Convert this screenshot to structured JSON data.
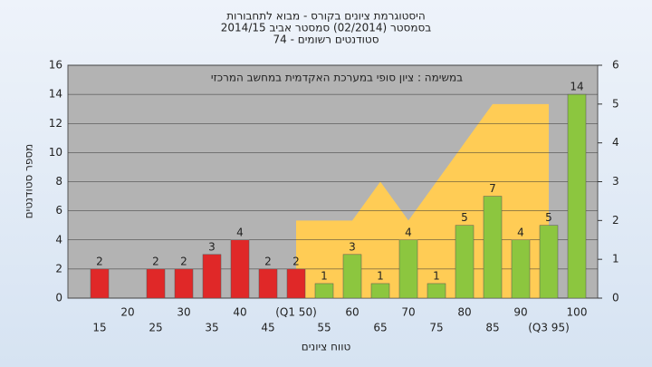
{
  "chart_data": {
    "type": "bar",
    "title_lines": [
      "היסטוגרמת ציונים בקורס - מבוא לתחבורות",
      "בסמסטר  (02/2014)  סמסטר אביב 2014/15",
      "סטודנטים רשומים - 74"
    ],
    "annotation": "במשימה : ציון סופי במערכת האקדמית במחשב המרכזי",
    "y_label": "מספר סטודנטים",
    "x_label": "טווח ציונים",
    "categories": [
      "15",
      "20",
      "25",
      "30",
      "35",
      "40",
      "45",
      "(Q1 50)",
      "55",
      "60",
      "65",
      "70",
      "75",
      "80",
      "85",
      "90",
      "(Q3 95)",
      "100"
    ],
    "values": [
      2,
      null,
      2,
      2,
      3,
      4,
      2,
      2,
      1,
      3,
      1,
      4,
      1,
      5,
      7,
      4,
      5,
      14
    ],
    "bar_colors": [
      "#e02828",
      "#e02828",
      "#e02828",
      "#e02828",
      "#e02828",
      "#e02828",
      "#e02828",
      "#e02828",
      "#8cc63f",
      "#8cc63f",
      "#8cc63f",
      "#8cc63f",
      "#8cc63f",
      "#8cc63f",
      "#8cc63f",
      "#8cc63f",
      "#8cc63f",
      "#8cc63f"
    ],
    "area": {
      "axis": "y2",
      "color": "#ffcc55",
      "values": [
        null,
        null,
        null,
        null,
        null,
        null,
        null,
        2,
        2,
        2,
        3,
        2,
        3,
        4,
        5,
        5,
        5,
        null
      ]
    },
    "ylim": [
      0,
      16
    ],
    "yticks": [
      0,
      2,
      4,
      6,
      8,
      10,
      12,
      14,
      16
    ],
    "y2lim": [
      0,
      6
    ],
    "y2ticks": [
      0,
      1,
      2,
      3,
      4,
      5,
      6
    ],
    "grid": true
  }
}
